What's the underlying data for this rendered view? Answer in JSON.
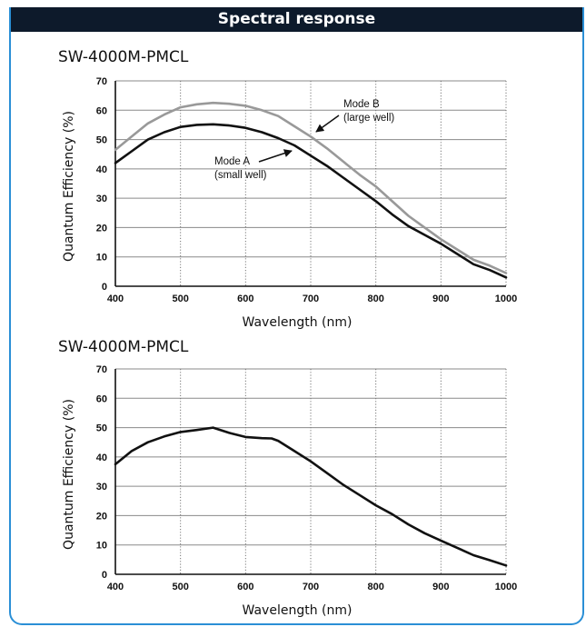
{
  "header": {
    "title": "Spectral response"
  },
  "colors": {
    "header_bg": "#0d1a2b",
    "border": "#2a8fd6",
    "mode_a": "#111111",
    "mode_b": "#999999"
  },
  "chart_data": [
    {
      "type": "line",
      "title": "SW-4000M-PMCL",
      "xlabel": "Wavelength (nm)",
      "ylabel": "Quantum Efficiency (%)",
      "xlim": [
        400,
        1000
      ],
      "ylim": [
        0,
        70
      ],
      "xticks": [
        400,
        500,
        600,
        700,
        800,
        900,
        1000
      ],
      "yticks": [
        0,
        10,
        20,
        30,
        40,
        50,
        60,
        70
      ],
      "grid": true,
      "series": [
        {
          "name": "Mode A",
          "x": [
            400,
            425,
            450,
            475,
            500,
            525,
            550,
            575,
            600,
            625,
            650,
            675,
            700,
            725,
            750,
            775,
            800,
            825,
            850,
            875,
            900,
            925,
            950,
            975,
            1000
          ],
          "y": [
            42,
            46,
            50,
            52.5,
            54.3,
            55,
            55.2,
            54.8,
            54,
            52.5,
            50.5,
            48,
            44.5,
            41,
            37,
            33,
            29,
            24.5,
            20.5,
            17.5,
            14.5,
            11,
            7.5,
            5.5,
            3
          ]
        },
        {
          "name": "Mode B",
          "x": [
            400,
            425,
            450,
            475,
            500,
            525,
            550,
            575,
            600,
            625,
            650,
            675,
            700,
            725,
            750,
            775,
            800,
            825,
            850,
            875,
            900,
            925,
            950,
            975,
            1000
          ],
          "y": [
            46.5,
            51,
            55.5,
            58.5,
            61,
            62,
            62.5,
            62.2,
            61.5,
            60,
            58,
            54.5,
            51,
            47,
            42.5,
            38,
            34,
            29,
            24,
            20,
            16,
            12.5,
            9,
            7,
            4.5
          ]
        }
      ],
      "annotations": [
        {
          "text_1": "Mode A",
          "text_2": "(small well)"
        },
        {
          "text_1": "Mode B",
          "text_2": "(large well)"
        }
      ]
    },
    {
      "type": "line",
      "title": "SW-4000M-PMCL",
      "xlabel": "Wavelength (nm)",
      "ylabel": "Quantum Efficiency (%)",
      "xlim": [
        400,
        1000
      ],
      "ylim": [
        0,
        70
      ],
      "xticks": [
        400,
        500,
        600,
        700,
        800,
        900,
        1000
      ],
      "yticks": [
        0,
        10,
        20,
        30,
        40,
        50,
        60,
        70
      ],
      "grid": true,
      "series": [
        {
          "x": [
            400,
            425,
            450,
            475,
            500,
            525,
            550,
            575,
            600,
            625,
            640,
            650,
            675,
            700,
            725,
            750,
            775,
            800,
            825,
            850,
            875,
            900,
            925,
            950,
            975,
            1000
          ],
          "y": [
            37.5,
            42,
            45,
            47,
            48.5,
            49.2,
            50,
            48.2,
            46.8,
            46.4,
            46.3,
            45.5,
            42,
            38.5,
            34.5,
            30.5,
            27,
            23.5,
            20.5,
            17,
            14,
            11.5,
            9,
            6.5,
            4.8,
            3
          ]
        }
      ]
    }
  ]
}
